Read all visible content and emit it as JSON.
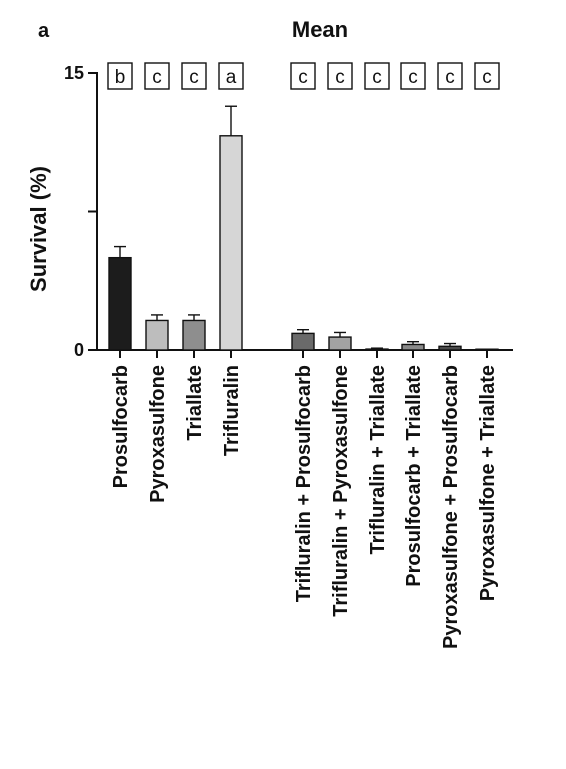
{
  "panel_label": "a",
  "chart_data": {
    "type": "bar",
    "title": "Mean",
    "xlabel": "",
    "ylabel": "Survival  (%)",
    "ylim": [
      0,
      15
    ],
    "y_ticks": [
      0,
      15
    ],
    "grid": false,
    "legend": "none",
    "categories": [
      "Prosulfocarb",
      "Pyroxasulfone",
      "Triallate",
      "Trifluralin",
      "Trifluralin + Prosulfocarb",
      "Trifluralin + Pyroxasulfone",
      "Trifluralin + Triallate",
      "Prosulfocarb + Triallate",
      "Pyroxasulfone + Prosulfocarb",
      "Pyroxasulfone + Triallate"
    ],
    "values": [
      5.0,
      1.6,
      1.6,
      11.6,
      0.9,
      0.7,
      0.05,
      0.3,
      0.2,
      0.02
    ],
    "errors": [
      0.6,
      0.3,
      0.3,
      1.6,
      0.2,
      0.25,
      0.05,
      0.15,
      0.15,
      0.02
    ],
    "letters": [
      "b",
      "c",
      "c",
      "a",
      "c",
      "c",
      "c",
      "c",
      "c",
      "c"
    ],
    "bar_colors": [
      "#1c1c1c",
      "#bdbdbd",
      "#8e8e8e",
      "#d6d6d6",
      "#6a6a6a",
      "#a3a3a3",
      "#505050",
      "#8a8a8a",
      "#4a4a4a",
      "#cfcfcf"
    ]
  }
}
